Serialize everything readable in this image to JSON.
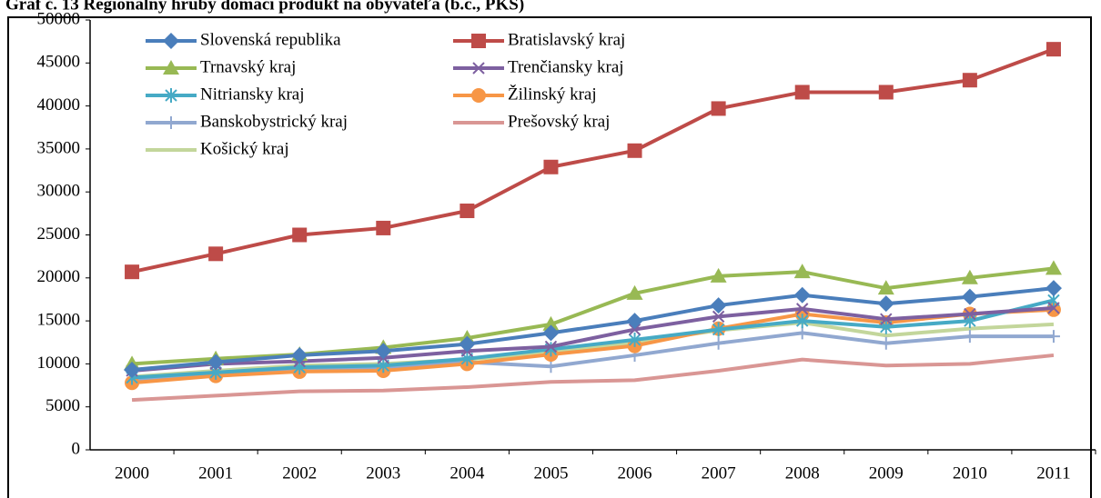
{
  "chart_data": {
    "type": "line",
    "title": "Graf č. 13 Regionálny hrubý domáci produkt na obyvateľa (b.c., PKS)",
    "categories": [
      "2000",
      "2001",
      "2002",
      "2003",
      "2004",
      "2005",
      "2006",
      "2007",
      "2008",
      "2009",
      "2010",
      "2011"
    ],
    "ylim": [
      0,
      50000
    ],
    "yticks": [
      0,
      5000,
      10000,
      15000,
      20000,
      25000,
      30000,
      35000,
      40000,
      45000,
      50000
    ],
    "grid": false,
    "legend": "top-left",
    "series": [
      {
        "name": "Slovenská republika",
        "color": "#4a7ebb",
        "marker": "diamond",
        "values": [
          9300,
          10200,
          11000,
          11500,
          12300,
          13600,
          15000,
          16800,
          18000,
          17000,
          17800,
          18800
        ]
      },
      {
        "name": "Bratislavský kraj",
        "color": "#be4b48",
        "marker": "square",
        "values": [
          20700,
          22800,
          25000,
          25800,
          27800,
          32900,
          34800,
          39700,
          41600,
          41600,
          43000,
          46600
        ]
      },
      {
        "name": "Trnavský kraj",
        "color": "#98b954",
        "marker": "triangle",
        "values": [
          10000,
          10600,
          11100,
          11900,
          13000,
          14600,
          18200,
          20200,
          20700,
          18800,
          20000,
          21100
        ]
      },
      {
        "name": "Trenčiansky kraj",
        "color": "#7d60a0",
        "marker": "x",
        "values": [
          9200,
          10000,
          10300,
          10700,
          11500,
          12000,
          14000,
          15500,
          16400,
          15200,
          15800,
          16500
        ]
      },
      {
        "name": "Nitriansky kraj",
        "color": "#46aac5",
        "marker": "star",
        "values": [
          8400,
          9000,
          9600,
          9800,
          10600,
          11700,
          12800,
          14000,
          15000,
          14300,
          15000,
          17400
        ]
      },
      {
        "name": "Žilinský kraj",
        "color": "#f79646",
        "marker": "circle",
        "values": [
          7800,
          8600,
          9100,
          9200,
          10000,
          11100,
          12100,
          14100,
          15800,
          14800,
          15800,
          16300
        ]
      },
      {
        "name": "Banskobystrický kraj",
        "color": "#91a8d0",
        "marker": "plus",
        "values": [
          8100,
          8700,
          9300,
          9600,
          10200,
          9700,
          11000,
          12400,
          13600,
          12400,
          13200,
          13200
        ]
      },
      {
        "name": "Prešovský kraj",
        "color": "#d99694",
        "marker": "none",
        "values": [
          5800,
          6300,
          6800,
          6900,
          7300,
          7900,
          8100,
          9200,
          10500,
          9800,
          10000,
          11000
        ]
      },
      {
        "name": "Košický kraj",
        "color": "#c3d69b",
        "marker": "none",
        "values": [
          8500,
          9200,
          9800,
          10000,
          10500,
          11300,
          12500,
          13900,
          14800,
          13300,
          14100,
          14600
        ]
      }
    ]
  }
}
